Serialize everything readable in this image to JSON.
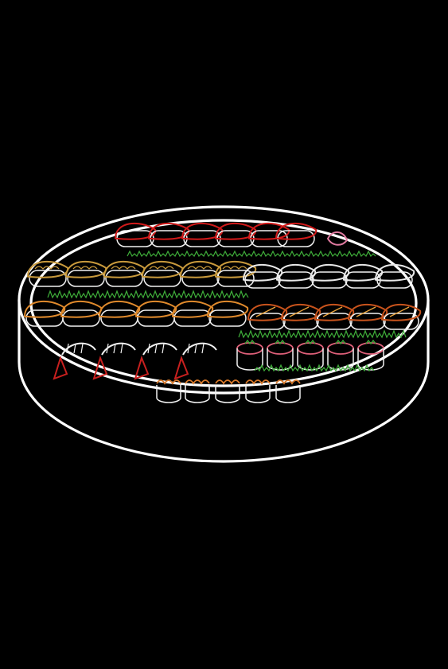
{
  "scene": {
    "background": "#000000",
    "subject": "sushi-platter-icon",
    "colors": {
      "tray_outline": "#ffffff",
      "tuna": "#d11a1a",
      "egg": "#c99a3c",
      "salmon": "#e08a2c",
      "white_fish": "#e8e8e8",
      "eel": "#c7531c",
      "eel_glaze": "#e8a23a",
      "shrimp_tail": "#c8201f",
      "shrimp_body": "#f2f2f2",
      "herb": "#3fae3a",
      "roe_roll": "#e0607a",
      "roe_top": "#d9792a",
      "cress": "#3fae3a",
      "ginger": "#e07aa0",
      "roll_wrap": "#f2f2f2"
    }
  }
}
